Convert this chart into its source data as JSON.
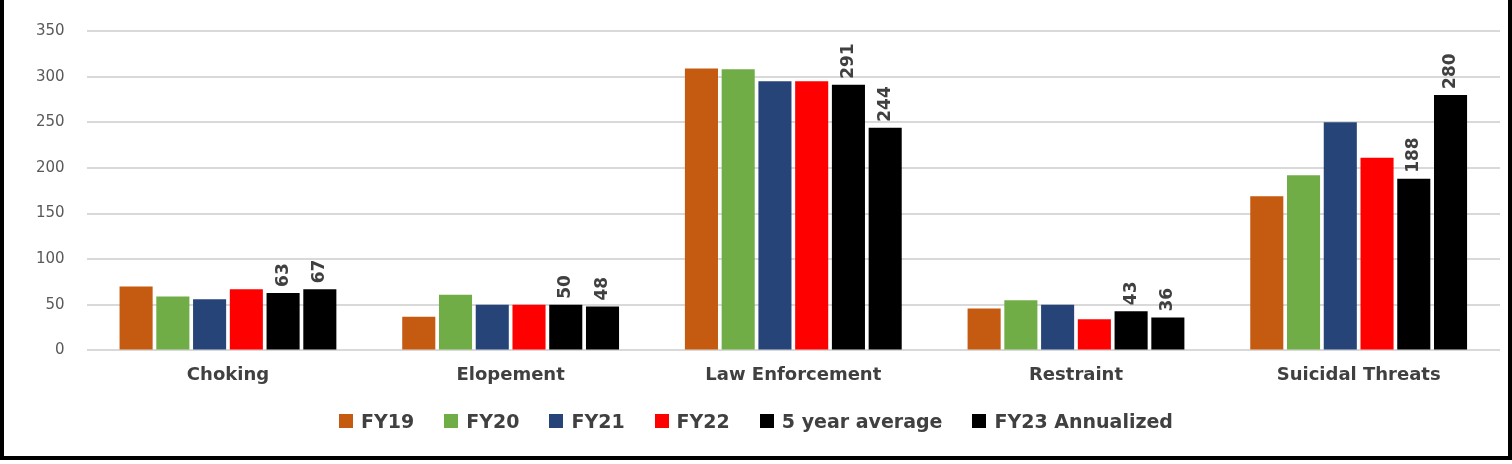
{
  "chart_data": {
    "type": "bar",
    "categories": [
      "Choking",
      "Elopement",
      "Law Enforcement",
      "Restraint",
      "Suicidal Threats"
    ],
    "ylim": [
      0,
      350
    ],
    "yticks": [
      0,
      50,
      100,
      150,
      200,
      250,
      300,
      350
    ],
    "grid": "y",
    "legend": "bottom",
    "series": [
      {
        "name": "FY19",
        "color": "#c55a11",
        "values": [
          70,
          37,
          309,
          46,
          169
        ]
      },
      {
        "name": "FY20",
        "color": "#70ad47",
        "values": [
          59,
          61,
          308,
          55,
          192
        ]
      },
      {
        "name": "FY21",
        "color": "#264478",
        "values": [
          56,
          50,
          295,
          50,
          250
        ]
      },
      {
        "name": "FY22",
        "color": "#ff0000",
        "values": [
          67,
          50,
          295,
          34,
          211
        ]
      },
      {
        "name": "5 year average",
        "color": "#000000",
        "values": [
          63,
          50,
          291,
          43,
          188
        ],
        "value_labels": [
          "63",
          "50",
          "291",
          "43",
          "188"
        ]
      },
      {
        "name": "FY23 Annualized",
        "color": "#000000",
        "values": [
          67,
          48,
          244,
          36,
          280
        ],
        "value_labels": [
          "67",
          "48",
          "244",
          "36",
          "280"
        ]
      }
    ]
  }
}
